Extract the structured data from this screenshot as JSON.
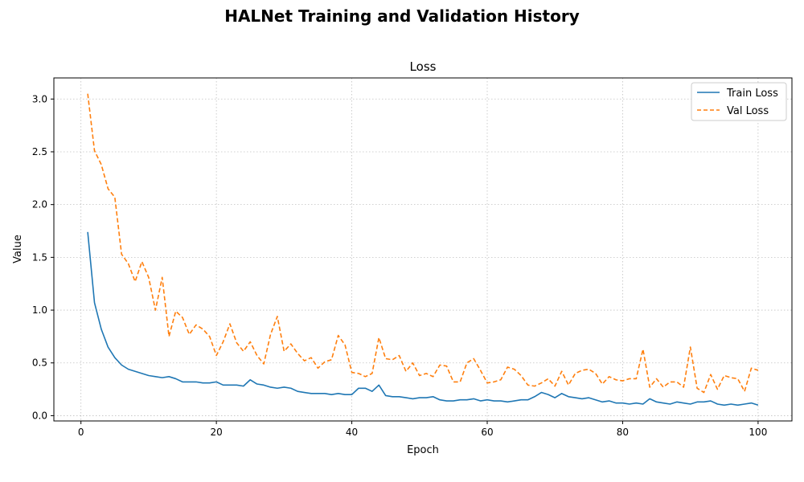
{
  "figure": {
    "title": "HALNet Training and Validation History"
  },
  "chart_data": {
    "type": "line",
    "title": "Loss",
    "xlabel": "Epoch",
    "ylabel": "Value",
    "xlim": [
      -4,
      105
    ],
    "ylim": [
      -0.05,
      3.2
    ],
    "xticks": [
      0,
      20,
      40,
      60,
      80,
      100
    ],
    "xtick_labels": [
      "0",
      "20",
      "40",
      "60",
      "80",
      "100"
    ],
    "yticks": [
      0.0,
      0.5,
      1.0,
      1.5,
      2.0,
      2.5,
      3.0
    ],
    "ytick_labels": [
      "0.0",
      "0.5",
      "1.0",
      "1.5",
      "2.0",
      "2.5",
      "3.0"
    ],
    "grid": true,
    "legend_position": "top-right",
    "x": [
      1,
      2,
      3,
      4,
      5,
      6,
      7,
      8,
      9,
      10,
      11,
      12,
      13,
      14,
      15,
      16,
      17,
      18,
      19,
      20,
      21,
      22,
      23,
      24,
      25,
      26,
      27,
      28,
      29,
      30,
      31,
      32,
      33,
      34,
      35,
      36,
      37,
      38,
      39,
      40,
      41,
      42,
      43,
      44,
      45,
      46,
      47,
      48,
      49,
      50,
      51,
      52,
      53,
      54,
      55,
      56,
      57,
      58,
      59,
      60,
      61,
      62,
      63,
      64,
      65,
      66,
      67,
      68,
      69,
      70,
      71,
      72,
      73,
      74,
      75,
      76,
      77,
      78,
      79,
      80,
      81,
      82,
      83,
      84,
      85,
      86,
      87,
      88,
      89,
      90,
      91,
      92,
      93,
      94,
      95,
      96,
      97,
      98,
      99,
      100
    ],
    "series": [
      {
        "name": "Train Loss",
        "color": "#1f77b4",
        "style": "solid",
        "values": [
          1.74,
          1.07,
          0.82,
          0.65,
          0.55,
          0.48,
          0.44,
          0.42,
          0.4,
          0.38,
          0.37,
          0.36,
          0.37,
          0.35,
          0.32,
          0.32,
          0.32,
          0.31,
          0.31,
          0.32,
          0.29,
          0.29,
          0.29,
          0.28,
          0.34,
          0.3,
          0.29,
          0.27,
          0.26,
          0.27,
          0.26,
          0.23,
          0.22,
          0.21,
          0.21,
          0.21,
          0.2,
          0.21,
          0.2,
          0.2,
          0.26,
          0.26,
          0.23,
          0.29,
          0.19,
          0.18,
          0.18,
          0.17,
          0.16,
          0.17,
          0.17,
          0.18,
          0.15,
          0.14,
          0.14,
          0.15,
          0.15,
          0.16,
          0.14,
          0.15,
          0.14,
          0.14,
          0.13,
          0.14,
          0.15,
          0.15,
          0.18,
          0.22,
          0.2,
          0.17,
          0.21,
          0.18,
          0.17,
          0.16,
          0.17,
          0.15,
          0.13,
          0.14,
          0.12,
          0.12,
          0.11,
          0.12,
          0.11,
          0.16,
          0.13,
          0.12,
          0.11,
          0.13,
          0.12,
          0.11,
          0.13,
          0.13,
          0.14,
          0.11,
          0.1,
          0.11,
          0.1,
          0.11,
          0.12,
          0.1
        ]
      },
      {
        "name": "Val Loss",
        "color": "#ff7f0e",
        "style": "dashed",
        "values": [
          3.05,
          2.51,
          2.38,
          2.15,
          2.07,
          1.53,
          1.44,
          1.27,
          1.46,
          1.31,
          1.0,
          1.31,
          0.75,
          0.99,
          0.93,
          0.77,
          0.86,
          0.82,
          0.75,
          0.57,
          0.7,
          0.87,
          0.69,
          0.61,
          0.7,
          0.57,
          0.49,
          0.77,
          0.94,
          0.61,
          0.68,
          0.59,
          0.52,
          0.55,
          0.45,
          0.51,
          0.53,
          0.76,
          0.67,
          0.41,
          0.4,
          0.37,
          0.4,
          0.74,
          0.54,
          0.53,
          0.57,
          0.42,
          0.5,
          0.38,
          0.4,
          0.37,
          0.48,
          0.47,
          0.32,
          0.32,
          0.5,
          0.54,
          0.43,
          0.31,
          0.32,
          0.34,
          0.46,
          0.44,
          0.38,
          0.29,
          0.28,
          0.31,
          0.35,
          0.28,
          0.42,
          0.29,
          0.4,
          0.43,
          0.44,
          0.4,
          0.3,
          0.37,
          0.34,
          0.33,
          0.35,
          0.35,
          0.63,
          0.27,
          0.35,
          0.27,
          0.32,
          0.32,
          0.27,
          0.65,
          0.26,
          0.22,
          0.39,
          0.25,
          0.38,
          0.36,
          0.35,
          0.23,
          0.45,
          0.43
        ]
      }
    ]
  }
}
